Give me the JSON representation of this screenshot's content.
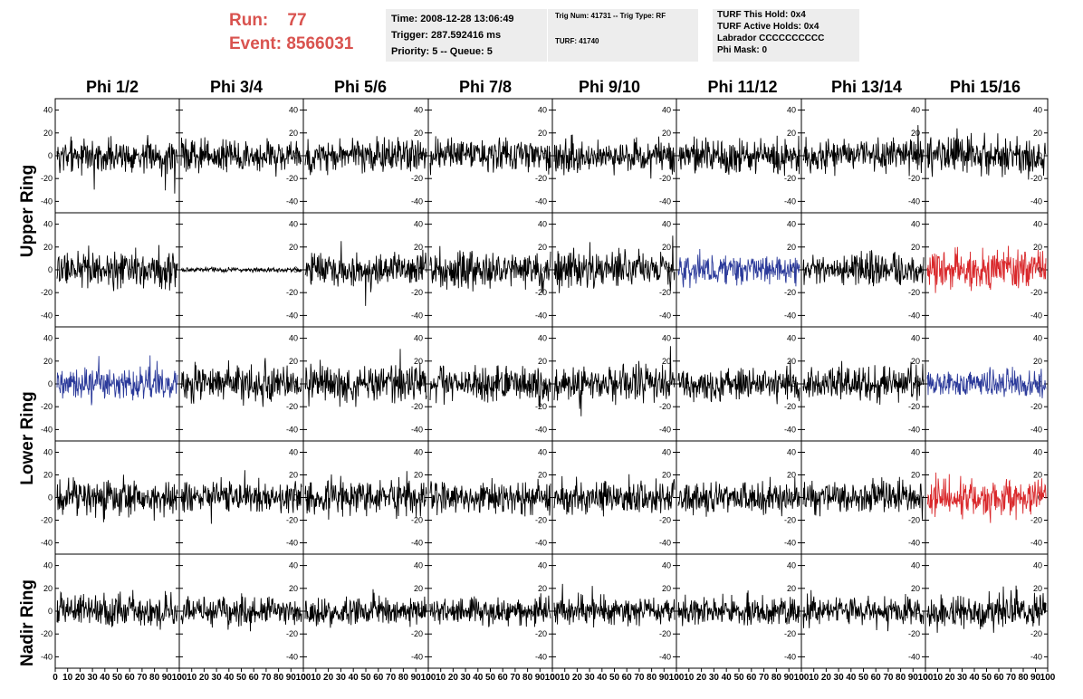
{
  "header": {
    "run_label": "Run:",
    "run_value": "77",
    "event_label": "Event:",
    "event_value": "8566031",
    "time": "Time: 2008-12-28 13:06:49",
    "trigger": "Trigger: 287.592416 ms",
    "priority": "Priority: 5 -- Queue: 5",
    "trig_num": "Trig Num: 41731 -- Trig Type: RF",
    "turf": "TURF: 41740",
    "turf_this_hold": "TURF This Hold: 0x4",
    "turf_active_holds": "TURF Active Holds: 0x4",
    "labrador": "Labrador CCCCCCCCCC",
    "phi_mask": "Phi Mask: 0"
  },
  "columns": [
    "Phi 1/2",
    "Phi 3/4",
    "Phi 5/6",
    "Phi 7/8",
    "Phi 9/10",
    "Phi 11/12",
    "Phi 13/14",
    "Phi 15/16"
  ],
  "rows": [
    {
      "label": "Upper Ring"
    },
    {
      "label": "Lower Ring"
    },
    {
      "label": "Nadir Ring"
    }
  ],
  "axis": {
    "y_ticks": [
      "40",
      "20",
      "0",
      "-20",
      "-40"
    ],
    "x_ticks": [
      "0",
      "10",
      "20",
      "30",
      "40",
      "50",
      "60",
      "70",
      "80",
      "90",
      "100"
    ]
  },
  "colors": {
    "trace_default": "#000000",
    "trace_blue": "#2b3a9a",
    "trace_red": "#d9282b",
    "run_text": "#d9534f",
    "panel_bg": "#ededed"
  },
  "chart_data": {
    "type": "line",
    "title": "",
    "xlabel": "",
    "ylabel": "",
    "xlim": [
      0,
      100
    ],
    "ylim": [
      -50,
      50
    ],
    "grid": false,
    "panels": [
      {
        "row": 0,
        "col": 0,
        "color": "black",
        "amplitude": 22
      },
      {
        "row": 0,
        "col": 1,
        "color": "black",
        "amplitude": 20
      },
      {
        "row": 0,
        "col": 2,
        "color": "black",
        "amplitude": 22
      },
      {
        "row": 0,
        "col": 3,
        "color": "black",
        "amplitude": 20
      },
      {
        "row": 0,
        "col": 4,
        "color": "black",
        "amplitude": 20
      },
      {
        "row": 0,
        "col": 5,
        "color": "black",
        "amplitude": 22
      },
      {
        "row": 0,
        "col": 6,
        "color": "black",
        "amplitude": 20
      },
      {
        "row": 0,
        "col": 7,
        "color": "black",
        "amplitude": 24
      },
      {
        "row": 1,
        "col": 0,
        "color": "black",
        "amplitude": 24
      },
      {
        "row": 1,
        "col": 1,
        "color": "black",
        "amplitude": 3
      },
      {
        "row": 1,
        "col": 2,
        "color": "black",
        "amplitude": 22
      },
      {
        "row": 1,
        "col": 3,
        "color": "black",
        "amplitude": 24
      },
      {
        "row": 1,
        "col": 4,
        "color": "black",
        "amplitude": 24
      },
      {
        "row": 1,
        "col": 5,
        "color": "blue",
        "amplitude": 20
      },
      {
        "row": 1,
        "col": 6,
        "color": "black",
        "amplitude": 20
      },
      {
        "row": 1,
        "col": 7,
        "color": "red",
        "amplitude": 24
      },
      {
        "row": 2,
        "col": 0,
        "color": "blue",
        "amplitude": 20
      },
      {
        "row": 2,
        "col": 1,
        "color": "black",
        "amplitude": 22
      },
      {
        "row": 2,
        "col": 2,
        "color": "black",
        "amplitude": 24
      },
      {
        "row": 2,
        "col": 3,
        "color": "black",
        "amplitude": 22
      },
      {
        "row": 2,
        "col": 4,
        "color": "black",
        "amplitude": 24
      },
      {
        "row": 2,
        "col": 5,
        "color": "black",
        "amplitude": 20
      },
      {
        "row": 2,
        "col": 6,
        "color": "black",
        "amplitude": 22
      },
      {
        "row": 2,
        "col": 7,
        "color": "blue",
        "amplitude": 18
      },
      {
        "row": 3,
        "col": 0,
        "color": "black",
        "amplitude": 24
      },
      {
        "row": 3,
        "col": 1,
        "color": "black",
        "amplitude": 20
      },
      {
        "row": 3,
        "col": 2,
        "color": "black",
        "amplitude": 22
      },
      {
        "row": 3,
        "col": 3,
        "color": "black",
        "amplitude": 20
      },
      {
        "row": 3,
        "col": 4,
        "color": "black",
        "amplitude": 22
      },
      {
        "row": 3,
        "col": 5,
        "color": "black",
        "amplitude": 20
      },
      {
        "row": 3,
        "col": 6,
        "color": "black",
        "amplitude": 20
      },
      {
        "row": 3,
        "col": 7,
        "color": "red",
        "amplitude": 24
      },
      {
        "row": 4,
        "col": 0,
        "color": "black",
        "amplitude": 20
      },
      {
        "row": 4,
        "col": 1,
        "color": "black",
        "amplitude": 18
      },
      {
        "row": 4,
        "col": 2,
        "color": "black",
        "amplitude": 18
      },
      {
        "row": 4,
        "col": 3,
        "color": "black",
        "amplitude": 18
      },
      {
        "row": 4,
        "col": 4,
        "color": "black",
        "amplitude": 18
      },
      {
        "row": 4,
        "col": 5,
        "color": "black",
        "amplitude": 18
      },
      {
        "row": 4,
        "col": 6,
        "color": "black",
        "amplitude": 18
      },
      {
        "row": 4,
        "col": 7,
        "color": "black",
        "amplitude": 22
      }
    ]
  }
}
